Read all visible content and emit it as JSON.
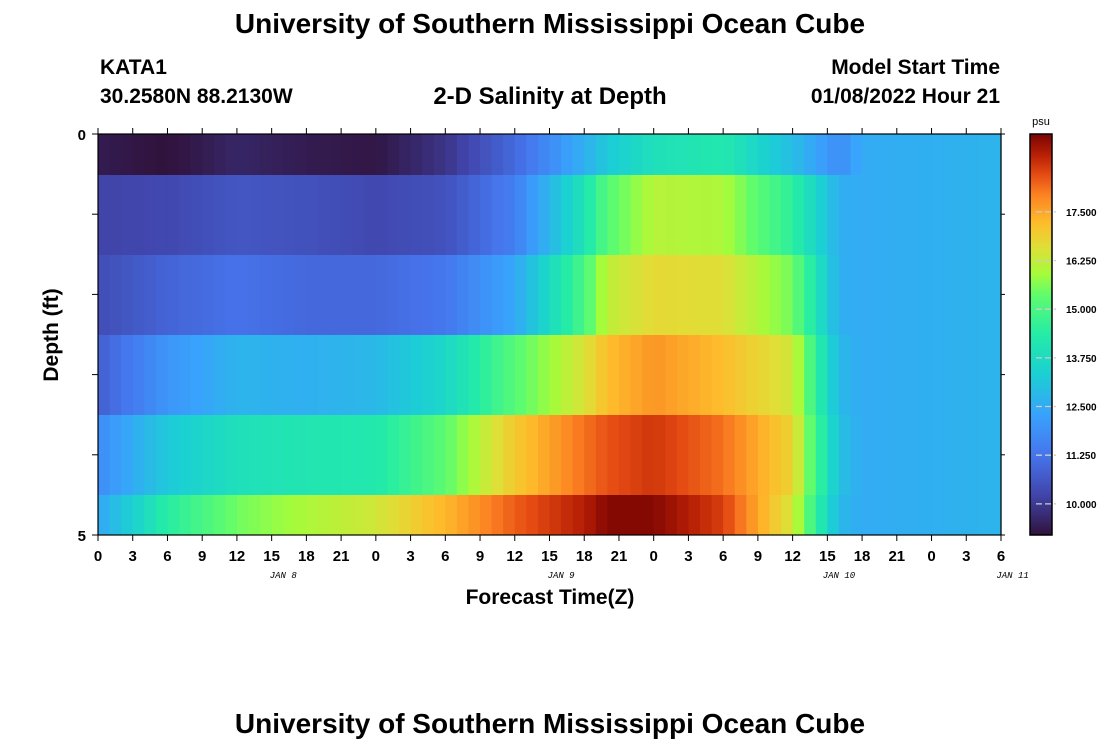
{
  "header": {
    "title": "University of Southern Mississippi Ocean Cube",
    "station": "KATA1",
    "coords": "30.2580N  88.2130W",
    "subtitle": "2-D Salinity at Depth",
    "model_start_label": "Model Start Time",
    "model_start_value": "01/08/2022 Hour 21"
  },
  "footer": {
    "title": "University of Southern Mississippi Ocean Cube"
  },
  "chart_data": {
    "type": "heatmap",
    "title": "2-D Salinity at Depth",
    "xlabel": "Forecast Time(Z)",
    "ylabel": "Depth (ft)",
    "x_tick_labels": [
      "0",
      "3",
      "6",
      "9",
      "12",
      "15",
      "18",
      "21",
      "0",
      "3",
      "6",
      "9",
      "12",
      "15",
      "18",
      "21",
      "0",
      "3",
      "6",
      "9",
      "12",
      "15",
      "18",
      "21",
      "0",
      "3",
      "6"
    ],
    "x_day_labels": [
      {
        "label": "JAN 8",
        "hour": 16
      },
      {
        "label": "JAN 9",
        "hour": 40
      },
      {
        "label": "JAN 10",
        "hour": 64
      },
      {
        "label": "JAN 11",
        "hour": 79
      }
    ],
    "y_tick_labels": [
      "0",
      "5"
    ],
    "y_range": [
      0,
      5
    ],
    "hours": [
      0,
      6,
      12,
      18,
      24,
      30,
      36,
      42,
      44,
      48,
      54,
      60,
      64,
      66,
      72,
      78
    ],
    "depth_rows": [
      [
        9.4,
        9.2,
        9.6,
        9.4,
        9.3,
        9.9,
        11.0,
        12.6,
        13.2,
        13.9,
        14.2,
        12.9,
        11.8,
        12.5,
        12.6,
        12.7
      ],
      [
        10.2,
        10.3,
        10.6,
        10.5,
        10.3,
        10.5,
        11.5,
        14.0,
        15.2,
        16.1,
        16.0,
        14.5,
        12.6,
        12.5,
        12.6,
        12.7
      ],
      [
        10.4,
        10.9,
        11.2,
        11.0,
        11.0,
        11.3,
        12.4,
        15.0,
        16.2,
        16.7,
        16.6,
        15.5,
        12.6,
        12.5,
        12.6,
        12.7
      ],
      [
        10.8,
        12.0,
        12.7,
        12.6,
        12.8,
        13.6,
        15.2,
        16.5,
        17.2,
        17.7,
        17.2,
        16.4,
        12.8,
        12.5,
        12.6,
        12.7
      ],
      [
        11.8,
        13.2,
        13.9,
        14.1,
        14.2,
        15.3,
        17.0,
        18.1,
        18.4,
        18.7,
        18.1,
        16.8,
        13.0,
        12.5,
        12.6,
        12.7
      ],
      [
        12.4,
        14.4,
        15.5,
        16.0,
        16.4,
        17.3,
        18.3,
        19.0,
        19.4,
        19.4,
        18.6,
        16.4,
        12.8,
        12.5,
        12.6,
        12.7
      ]
    ],
    "colorbar": {
      "unit": "psu",
      "range": [
        9.2,
        19.5
      ],
      "ticks": [
        "10.000",
        "11.250",
        "12.500",
        "13.750",
        "15.000",
        "16.250",
        "17.500"
      ]
    }
  }
}
